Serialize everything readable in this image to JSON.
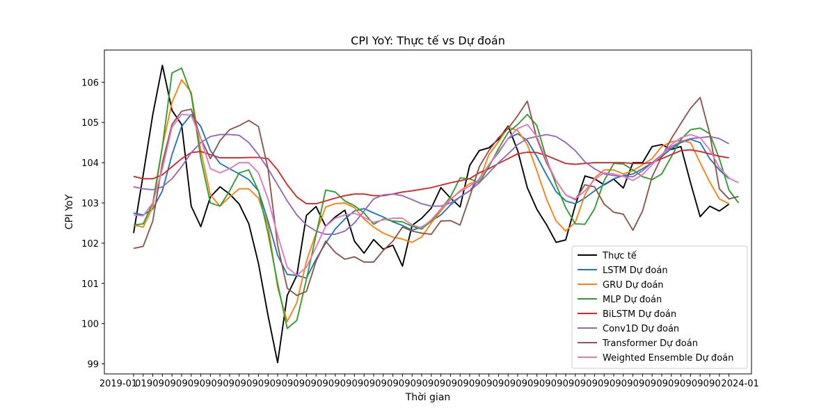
{
  "chart_data": {
    "type": "line",
    "title": "CPI YoY: Thực tế vs Dự đoán",
    "xlabel": "Thời gian",
    "ylabel": "CPI YoY",
    "ylim": [
      98.75,
      106.8
    ],
    "yticks": [
      99,
      100,
      101,
      102,
      103,
      104,
      105,
      106
    ],
    "x_tick_label_first": "2019-01",
    "x_tick_label_last": "2024-01",
    "x_tick_labels_note": "dense monthly tick labels overlapping at the base of the axis",
    "legend_position": "lower-right",
    "grid": false,
    "series": [
      {
        "name": "Thực tế",
        "color": "#000000",
        "values": [
          102.25,
          103.7,
          105.2,
          106.42,
          105.3,
          104.95,
          102.92,
          102.41,
          103.15,
          103.4,
          103.22,
          102.97,
          102.48,
          101.5,
          100.2,
          99.03,
          100.7,
          101.2,
          102.69,
          102.91,
          102.42,
          102.65,
          102.82,
          102.05,
          101.75,
          102.09,
          101.85,
          101.95,
          101.43,
          102.44,
          102.62,
          102.87,
          103.38,
          103.12,
          102.9,
          103.93,
          104.3,
          104.37,
          104.58,
          104.91,
          104.3,
          103.38,
          102.84,
          102.46,
          102.02,
          102.08,
          102.94,
          103.67,
          103.6,
          103.45,
          103.59,
          103.37,
          104.0,
          104.0,
          104.4,
          104.45,
          104.33,
          104.4,
          103.5,
          102.66,
          102.92,
          102.8,
          102.97
        ]
      },
      {
        "name": "LSTM Dự đoán",
        "color": "#1f77b4",
        "values": [
          102.75,
          102.7,
          102.85,
          103.3,
          104.2,
          104.9,
          105.2,
          104.9,
          104.3,
          103.98,
          103.85,
          103.72,
          103.58,
          103.3,
          102.55,
          101.7,
          101.22,
          101.2,
          101.13,
          101.6,
          102.0,
          102.35,
          102.6,
          102.8,
          102.86,
          102.75,
          102.65,
          102.53,
          102.44,
          102.32,
          102.4,
          102.55,
          102.7,
          102.95,
          103.15,
          103.3,
          103.6,
          103.95,
          104.25,
          104.6,
          104.72,
          104.55,
          104.15,
          103.7,
          103.28,
          103.05,
          102.98,
          103.12,
          103.3,
          103.46,
          103.6,
          103.68,
          103.72,
          103.85,
          104.0,
          104.15,
          104.35,
          104.5,
          104.58,
          104.5,
          104.1,
          103.82,
          103.6
        ]
      },
      {
        "name": "GRU Dự đoán",
        "color": "#ff7f0e",
        "values": [
          102.45,
          102.4,
          102.9,
          104.4,
          105.5,
          106.06,
          105.75,
          104.3,
          103.2,
          102.92,
          103.15,
          103.35,
          103.35,
          103.12,
          102.45,
          100.9,
          100.05,
          100.52,
          101.55,
          102.25,
          102.9,
          102.98,
          103.0,
          102.88,
          102.6,
          102.4,
          102.25,
          102.15,
          102.1,
          102.02,
          102.15,
          102.5,
          102.8,
          103.08,
          103.3,
          103.48,
          103.55,
          104.2,
          104.52,
          104.88,
          104.8,
          104.45,
          103.8,
          103.1,
          102.55,
          102.3,
          102.52,
          103.2,
          103.62,
          103.82,
          103.82,
          103.72,
          103.8,
          103.95,
          104.1,
          104.4,
          104.52,
          104.55,
          104.5,
          104.0,
          103.52,
          103.1,
          102.98
        ]
      },
      {
        "name": "MLP Dự đoán",
        "color": "#2ca02c",
        "values": [
          102.45,
          102.48,
          103.0,
          104.4,
          106.23,
          106.35,
          105.7,
          104.1,
          103.0,
          102.92,
          103.3,
          103.75,
          103.82,
          103.3,
          102.25,
          101.0,
          99.88,
          100.08,
          101.1,
          102.2,
          103.32,
          103.27,
          103.05,
          102.93,
          102.75,
          102.47,
          102.6,
          102.55,
          102.53,
          102.42,
          102.35,
          102.55,
          102.85,
          103.15,
          103.62,
          103.6,
          103.5,
          103.9,
          104.35,
          104.75,
          104.95,
          105.2,
          104.92,
          104.1,
          103.45,
          102.88,
          102.48,
          102.47,
          102.85,
          103.55,
          103.98,
          103.97,
          103.82,
          103.65,
          103.58,
          103.72,
          104.15,
          104.58,
          104.82,
          104.86,
          104.72,
          104.1,
          103.32,
          103.0
        ]
      },
      {
        "name": "BiLSTM Dự đoán",
        "color": "#d62728",
        "values": [
          103.66,
          103.6,
          103.6,
          103.7,
          103.9,
          104.1,
          104.25,
          104.28,
          104.2,
          104.12,
          104.12,
          104.12,
          104.13,
          104.13,
          104.1,
          103.82,
          103.45,
          103.15,
          102.98,
          102.98,
          103.05,
          103.12,
          103.18,
          103.22,
          103.22,
          103.18,
          103.18,
          103.22,
          103.27,
          103.3,
          103.34,
          103.38,
          103.44,
          103.5,
          103.55,
          103.6,
          103.75,
          103.85,
          103.98,
          104.1,
          104.22,
          104.26,
          104.25,
          104.18,
          104.08,
          103.98,
          103.96,
          103.98,
          104.0,
          104.0,
          104.0,
          104.0,
          103.98,
          103.98,
          104.0,
          104.1,
          104.2,
          104.3,
          104.32,
          104.28,
          104.22,
          104.16,
          104.12
        ]
      },
      {
        "name": "Conv1D Dự đoán",
        "color": "#9467bd",
        "values": [
          103.4,
          103.35,
          103.33,
          103.4,
          103.6,
          103.9,
          104.25,
          104.5,
          104.65,
          104.7,
          104.7,
          104.68,
          104.5,
          104.2,
          103.85,
          103.45,
          103.05,
          102.7,
          102.45,
          102.3,
          102.22,
          102.22,
          102.3,
          102.5,
          102.8,
          103.1,
          103.2,
          103.22,
          103.18,
          103.08,
          102.98,
          102.92,
          102.92,
          103.0,
          103.15,
          103.3,
          103.5,
          103.75,
          104.0,
          104.22,
          104.45,
          104.6,
          104.65,
          104.7,
          104.65,
          104.5,
          104.3,
          104.02,
          103.85,
          103.72,
          103.68,
          103.66,
          103.65,
          103.8,
          104.0,
          104.2,
          104.4,
          104.52,
          104.6,
          104.62,
          104.65,
          104.6,
          104.47
        ]
      },
      {
        "name": "Transformer Dự đoán",
        "color": "#8c564b",
        "values": [
          101.87,
          101.92,
          102.55,
          104.0,
          104.95,
          105.28,
          105.33,
          104.6,
          104.1,
          104.55,
          104.82,
          104.92,
          105.05,
          104.9,
          103.85,
          101.95,
          100.88,
          100.7,
          100.8,
          101.55,
          102.05,
          101.77,
          101.6,
          101.66,
          101.53,
          101.53,
          101.82,
          102.05,
          102.4,
          102.3,
          102.25,
          102.22,
          102.55,
          102.56,
          102.45,
          103.15,
          103.9,
          104.3,
          104.62,
          104.85,
          105.17,
          105.53,
          104.6,
          104.0,
          103.55,
          103.2,
          103.08,
          103.45,
          103.4,
          102.97,
          102.77,
          102.72,
          102.32,
          102.8,
          103.65,
          104.15,
          104.6,
          104.98,
          105.35,
          105.62,
          104.72,
          103.35,
          103.1,
          103.16
        ]
      },
      {
        "name": "Weighted Ensemble Dự đoán",
        "color": "#e377c2",
        "values": [
          102.7,
          102.68,
          103.0,
          103.85,
          104.88,
          105.2,
          105.18,
          104.6,
          103.85,
          103.75,
          103.85,
          104.0,
          104.0,
          103.75,
          103.1,
          102.2,
          101.4,
          101.2,
          101.4,
          101.9,
          102.42,
          102.62,
          102.7,
          102.74,
          102.64,
          102.52,
          102.58,
          102.62,
          102.62,
          102.45,
          102.38,
          102.58,
          102.85,
          103.1,
          103.28,
          103.42,
          103.58,
          103.95,
          104.28,
          104.6,
          104.85,
          104.95,
          104.65,
          104.05,
          103.55,
          103.2,
          103.1,
          103.3,
          103.58,
          103.75,
          103.72,
          103.66,
          103.56,
          103.7,
          103.95,
          104.2,
          104.45,
          104.62,
          104.7,
          104.62,
          104.32,
          103.88,
          103.62,
          103.5
        ]
      }
    ]
  }
}
